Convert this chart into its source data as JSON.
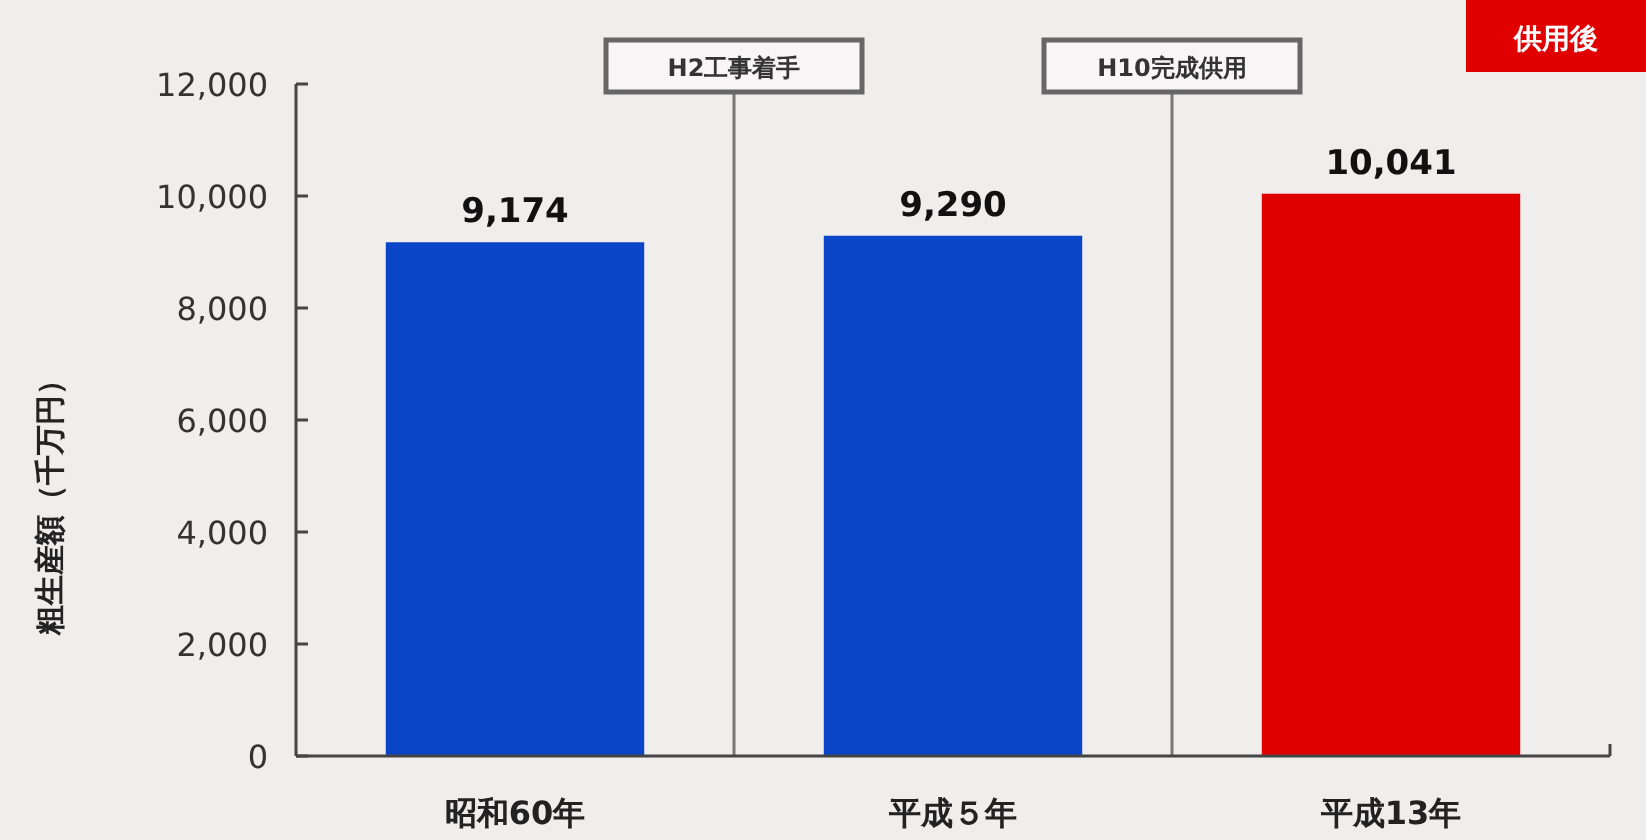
{
  "chart_data": {
    "type": "bar",
    "ylabel": "粗生産額（千万円）",
    "categories": [
      "昭和60年",
      "平成５年",
      "平成13年"
    ],
    "values": [
      9174,
      9290,
      10041
    ],
    "colors": [
      "#0a45c8",
      "#0a45c8",
      "#e00000"
    ],
    "value_labels": [
      "9,174",
      "9,290",
      "10,041"
    ],
    "ylim": [
      0,
      12000
    ],
    "yticks": [
      0,
      {
        "value": 2000,
        "label": "2,000"
      },
      {
        "value": 4000,
        "label": "4,000"
      },
      {
        "value": 6000,
        "label": "6,000"
      },
      {
        "value": 8000,
        "label": "8,000"
      },
      {
        "value": 10000,
        "label": "10,000"
      },
      {
        "value": 12000,
        "label": "12,000"
      }
    ],
    "grid": false,
    "annotations": [
      "H2工事着手",
      "H10完成供用",
      "供用後"
    ]
  }
}
